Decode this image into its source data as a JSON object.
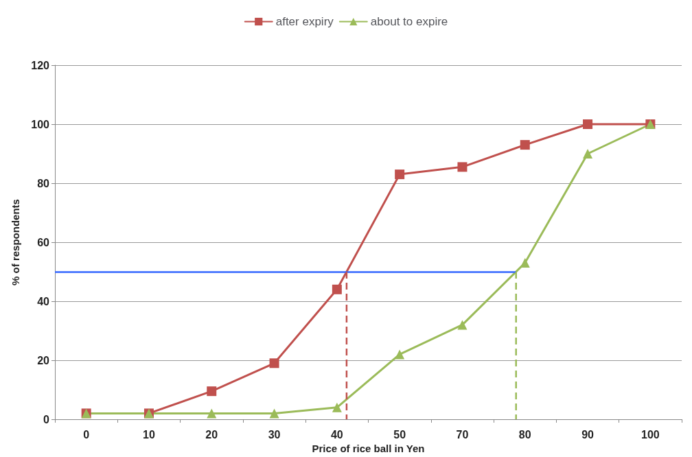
{
  "chart_data": {
    "type": "line",
    "xlabel": "Price of rice ball in Yen",
    "ylabel": "% of respondents",
    "categories": [
      "0",
      "10",
      "20",
      "30",
      "40",
      "50",
      "70",
      "80",
      "90",
      "100"
    ],
    "series": [
      {
        "name": "after expiry",
        "color": "#c0504d",
        "marker": "square",
        "values": [
          2,
          2,
          9.5,
          19,
          44,
          83,
          85.5,
          93,
          100,
          100
        ]
      },
      {
        "name": "about to expire",
        "color": "#9bbb59",
        "marker": "triangle",
        "values": [
          2,
          2,
          2,
          2,
          4,
          22,
          32,
          53,
          90,
          100
        ]
      }
    ],
    "ref_lines": [
      {
        "axis": "y",
        "value": 50,
        "color": "#3366ff",
        "line_style": "solid"
      }
    ],
    "ylim": [
      0,
      120
    ],
    "yticks": [
      0,
      20,
      40,
      60,
      80,
      100,
      120
    ],
    "grid": "y",
    "legend": "top",
    "line_style": "solid"
  }
}
